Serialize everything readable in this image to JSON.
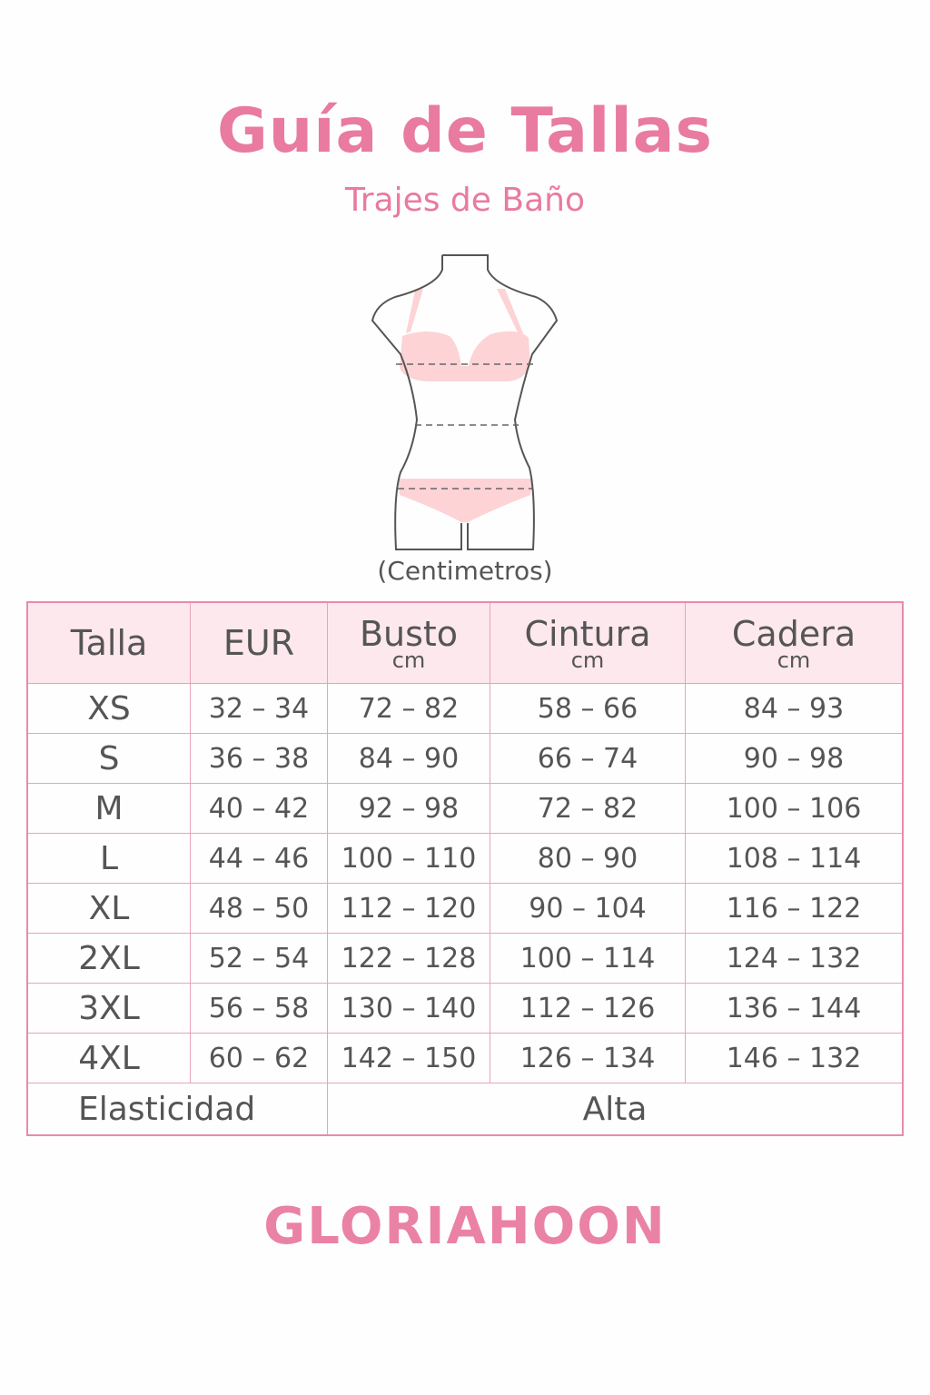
{
  "header": {
    "title": "Guía de Tallas",
    "subtitle": "Trajes de Baño"
  },
  "figure": {
    "icon": "body-measurement-figure",
    "units": "(Centimetros)"
  },
  "table": {
    "headers": [
      {
        "label": "Talla",
        "unit": ""
      },
      {
        "label": "EUR",
        "unit": ""
      },
      {
        "label": "Busto",
        "unit": "cm"
      },
      {
        "label": "Cintura",
        "unit": "cm"
      },
      {
        "label": "Cadera",
        "unit": "cm"
      }
    ],
    "rows": [
      [
        "XS",
        "32 – 34",
        "72 – 82",
        "58 – 66",
        "84 – 93"
      ],
      [
        "S",
        "36 – 38",
        "84 – 90",
        "66 – 74",
        "90 – 98"
      ],
      [
        "M",
        "40 – 42",
        "92 – 98",
        "72 – 82",
        "100 – 106"
      ],
      [
        "L",
        "44 – 46",
        "100 – 110",
        "80 – 90",
        "108 – 114"
      ],
      [
        "XL",
        "48 – 50",
        "112 – 120",
        "90 – 104",
        "116 – 122"
      ],
      [
        "2XL",
        "52 – 54",
        "122 – 128",
        "100 – 114",
        "124 – 132"
      ],
      [
        "3XL",
        "56 – 58",
        "130 – 140",
        "112 – 126",
        "136 – 144"
      ],
      [
        "4XL",
        "60 – 62",
        "142 – 150",
        "126 – 134",
        "146 – 132"
      ]
    ],
    "elasticity": {
      "label": "Elasticidad",
      "value": "Alta"
    }
  },
  "brand": {
    "logo": "GLORIAHOON"
  },
  "colors": {
    "accent": "#e97aa0",
    "header_bg": "#fde8ee",
    "swimsuit": "#fdd3d6"
  }
}
